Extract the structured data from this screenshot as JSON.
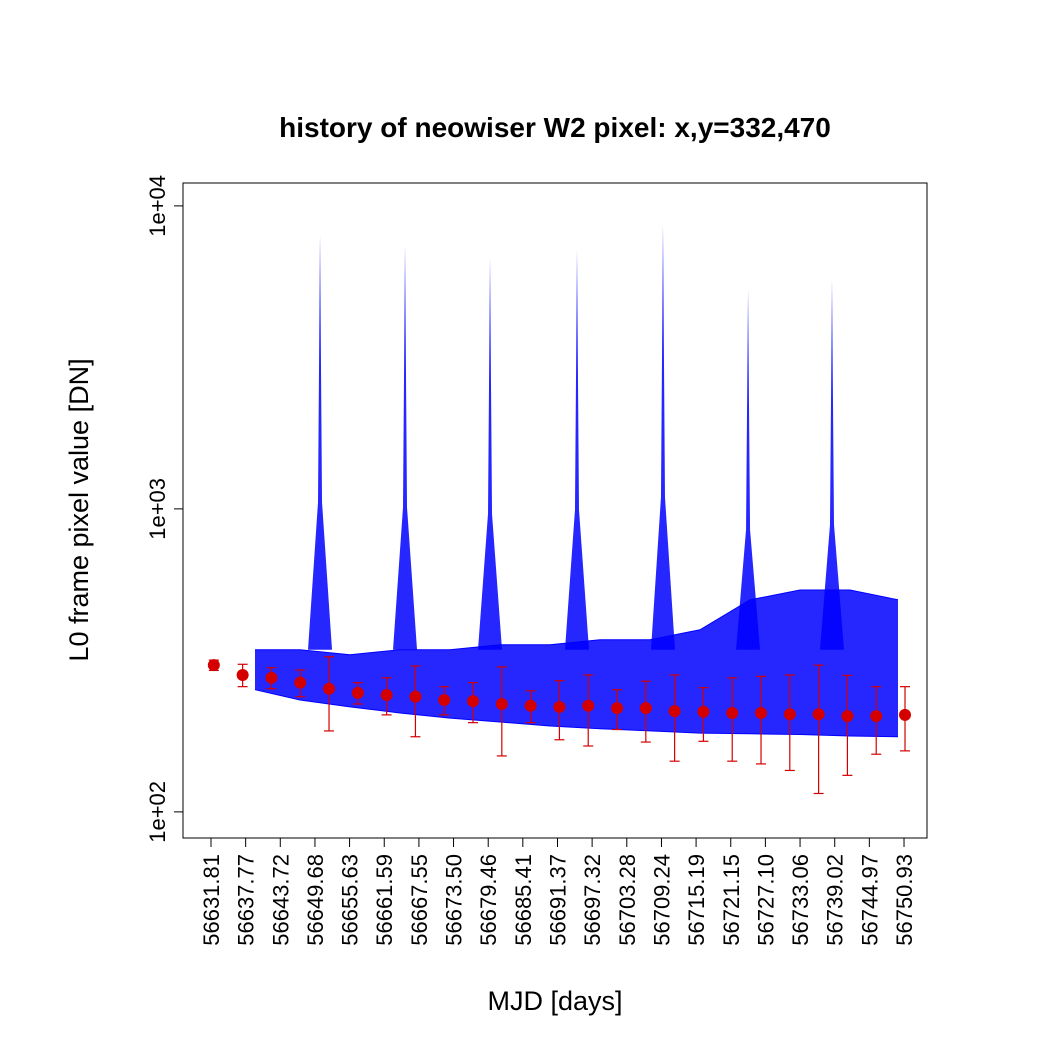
{
  "chart_data": {
    "type": "scatter",
    "title": "history of neowiser W2 pixel: x,y=332,470",
    "x_label": "MJD [days]",
    "y_label": "L0 frame pixel value [DN]",
    "log_y": true,
    "xlim": [
      56627.0,
      56754.88
    ],
    "ylim": [
      82,
      11900
    ],
    "xticks": [
      56631.81,
      56637.77,
      56643.72,
      56649.68,
      56655.63,
      56661.59,
      56667.55,
      {
        "value": 56673.5,
        "label": "56673.50"
      },
      56679.46,
      56685.41,
      56691.37,
      56697.32,
      56703.28,
      56709.24,
      56715.19,
      56721.15,
      {
        "value": 56727.1,
        "label": "56727.10"
      },
      56733.06,
      56739.02,
      56744.97,
      56750.93
    ],
    "yticks": [
      {
        "value": 100,
        "label": "1e+02"
      },
      {
        "value": 1000,
        "label": "1e+03"
      },
      {
        "value": 10000,
        "label": "1e+04"
      }
    ],
    "cloud": {
      "color": "#0000ff",
      "x": [
        56639.37,
        56647.11,
        56655.7,
        56664.3,
        56672.89,
        56681.48,
        56690.08,
        56698.67,
        56707.27,
        56715.86,
        56724.46,
        56733.05,
        56741.65,
        56749.9
      ],
      "low": [
        253,
        234,
        222,
        212,
        204,
        198,
        192,
        188,
        185,
        182,
        181,
        180,
        178,
        177
      ],
      "high": [
        343,
        343,
        330,
        343,
        343,
        356,
        356,
        370,
        370,
        399,
        501,
        540,
        540,
        501
      ]
    },
    "spikes": {
      "color": "#0000ff",
      "x": [
        56650.55,
        56665.16,
        56679.77,
        56694.72,
        56709.5,
        56724.12,
        56738.55
      ],
      "values": [
        8020,
        7430,
        6730,
        7160,
        8650,
        5280,
        5700
      ]
    },
    "medians": {
      "color": "#d40000",
      "x": [
        56632.3,
        56637.25,
        56642.2,
        56647.15,
        56652.1,
        56657.05,
        56662.0,
        56666.95,
        56671.9,
        56676.85,
        56681.8,
        56686.75,
        56691.7,
        56696.65,
        56701.6,
        56706.55,
        56711.5,
        56716.45,
        56721.4,
        56726.35,
        56731.3,
        56736.25,
        56741.2,
        56746.15,
        56751.1
      ],
      "values": [
        305,
        283,
        277,
        267,
        255,
        247,
        243,
        240,
        234,
        232,
        227,
        224,
        222,
        224,
        220,
        220,
        215,
        214,
        212,
        212,
        210,
        210,
        207,
        207,
        209
      ],
      "errors": [
        12,
        24,
        22,
        27,
        70,
        20,
        34,
        63,
        25,
        35,
        74,
        27,
        49,
        59,
        33,
        50,
        68,
        43,
        65,
        68,
        73,
        95,
        75,
        52,
        50
      ]
    }
  }
}
